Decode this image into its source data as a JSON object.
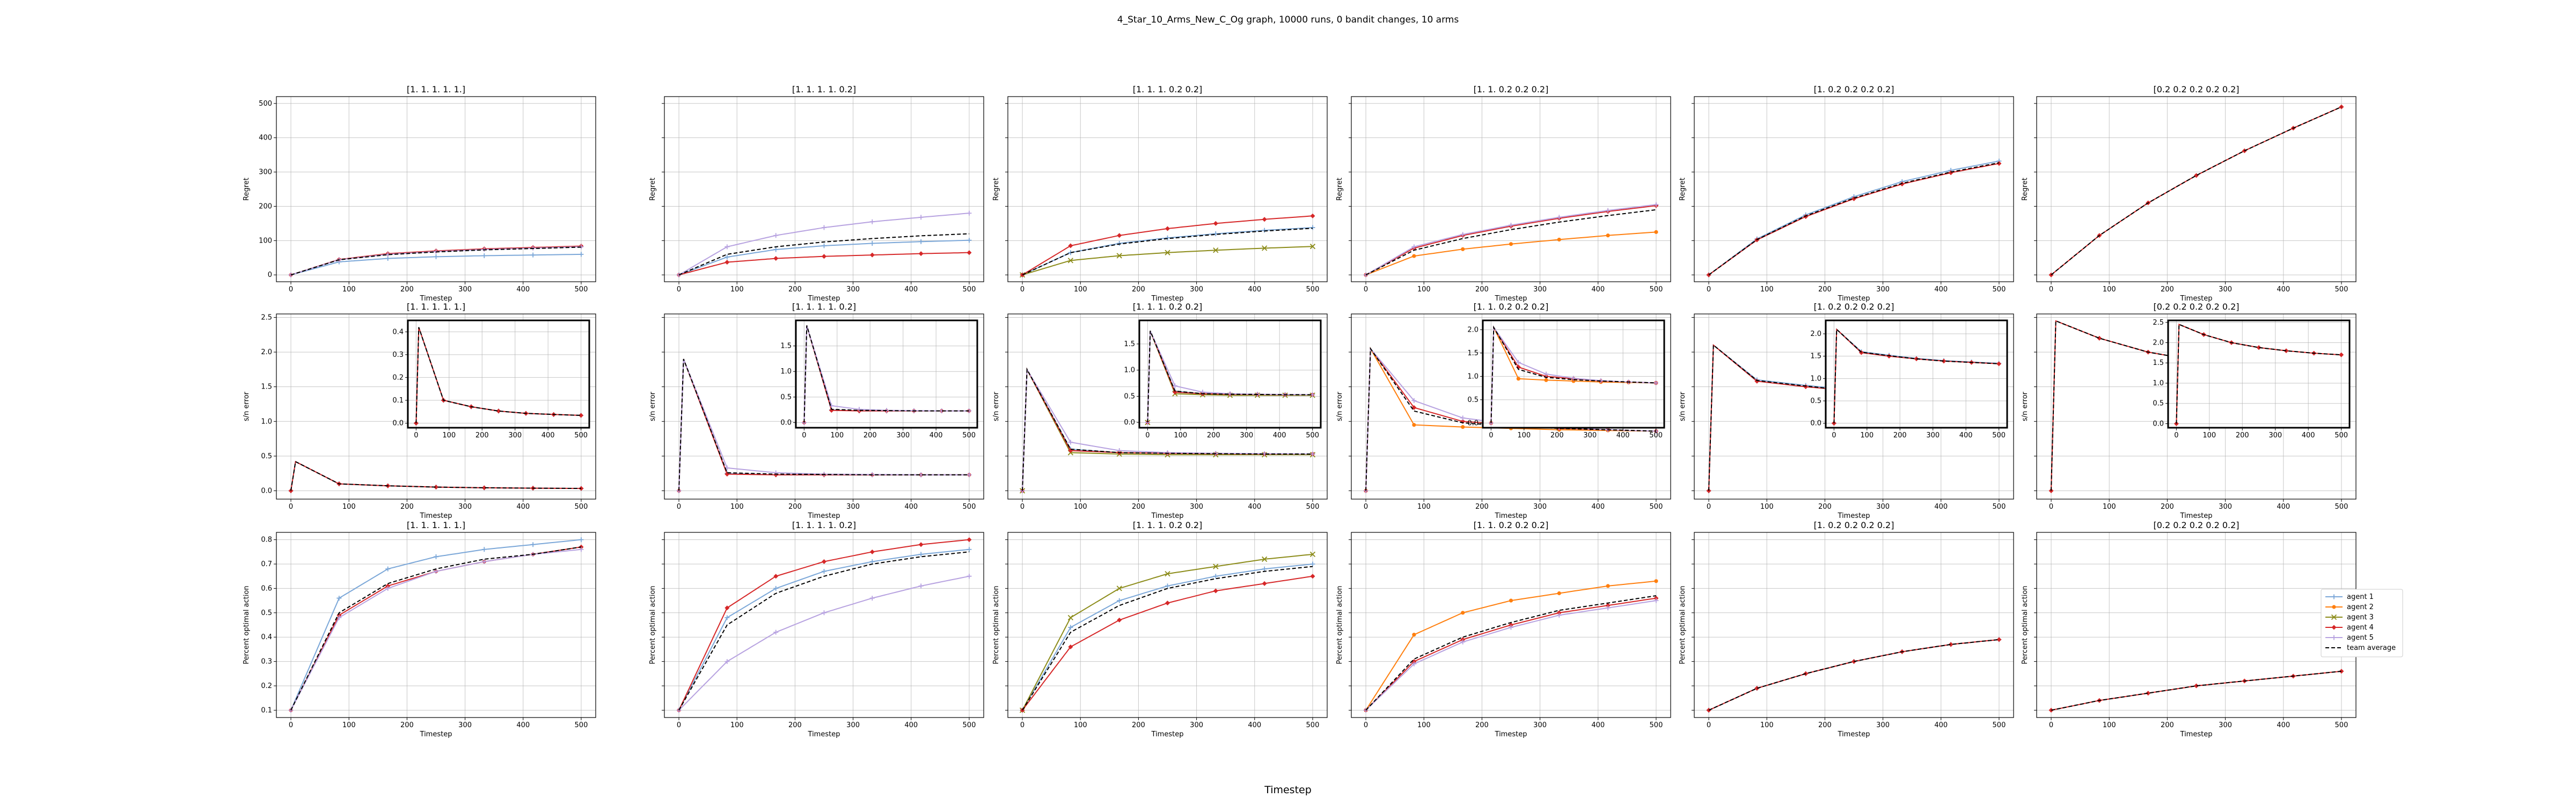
{
  "figure": {
    "title": "4_Star_10_Arms_New_C_Og graph, 10000 runs, 0 bandit changes, 10 arms",
    "xlabel": "Timestep"
  },
  "columns": [
    "[1. 1. 1. 1. 1.]",
    "[1.  1.  1.  1.  0.2]",
    "[1.  1.  1.  0.2 0.2]",
    "[1.  1.  0.2 0.2 0.2]",
    "[1.  0.2 0.2 0.2 0.2]",
    "[0.2 0.2 0.2 0.2 0.2]"
  ],
  "rows": [
    {
      "ylabel": "Regret",
      "xlabel": "Timestep",
      "ylim": [
        -20,
        520
      ],
      "yticks": [
        0,
        100,
        200,
        300,
        400,
        500
      ]
    },
    {
      "ylabel": "s/n error",
      "xlabel": "Timestep",
      "ylim": [
        -0.12,
        2.55
      ],
      "yticks": [
        0.0,
        0.5,
        1.0,
        1.5,
        2.0,
        2.5
      ]
    },
    {
      "ylabel": "Percent optimal action",
      "xlabel": "Timestep",
      "ylim": [
        0.07,
        0.83
      ],
      "yticks": [
        0.1,
        0.2,
        0.3,
        0.4,
        0.5,
        0.6,
        0.7,
        0.8
      ]
    }
  ],
  "xticks": [
    0,
    100,
    200,
    300,
    400,
    500
  ],
  "inset_xticks": [
    0,
    100,
    200,
    300,
    400,
    500
  ],
  "inset_ylims": [
    [
      -0.02,
      0.45
    ],
    [
      -0.1,
      2.0
    ],
    [
      -0.1,
      1.95
    ],
    [
      -0.1,
      2.2
    ],
    [
      -0.1,
      2.3
    ],
    [
      -0.1,
      2.55
    ]
  ],
  "inset_yticks": [
    [
      0.0,
      0.1,
      0.2,
      0.3,
      0.4
    ],
    [
      0.0,
      0.5,
      1.0,
      1.5
    ],
    [
      0.0,
      0.5,
      1.0,
      1.5
    ],
    [
      0.0,
      0.5,
      1.0,
      1.5,
      2.0
    ],
    [
      0.0,
      0.5,
      1.0,
      1.5,
      2.0
    ],
    [
      0.0,
      0.5,
      1.0,
      1.5,
      2.0,
      2.5
    ]
  ],
  "legend": [
    {
      "label": "agent 1",
      "color": "#7ba7d8",
      "marker": "plus",
      "dash": false
    },
    {
      "label": "agent 2",
      "color": "#ff7f0e",
      "marker": "circle",
      "dash": false
    },
    {
      "label": "agent 3",
      "color": "#8c8c1a",
      "marker": "x",
      "dash": false
    },
    {
      "label": "agent 4",
      "color": "#d62728",
      "marker": "diamond",
      "dash": false
    },
    {
      "label": "agent 5",
      "color": "#b7a2e0",
      "marker": "plus",
      "dash": false
    },
    {
      "label": "team average",
      "color": "#000000",
      "marker": "none",
      "dash": true
    }
  ],
  "chart_data": {
    "type": "line",
    "x_range": [
      0,
      500
    ],
    "marker_x": [
      0,
      83,
      167,
      250,
      333,
      417,
      500
    ],
    "grid": true,
    "legend_placement": "right",
    "panels": [
      [
        {
          "series": [
            {
              "agent": 0,
              "values": [
                0,
                38,
                48,
                53,
                56,
                58,
                60
              ]
            },
            {
              "agent": 3,
              "values": [
                0,
                45,
                62,
                70,
                76,
                80,
                84
              ]
            },
            {
              "agent": 4,
              "values": [
                0,
                44,
                60,
                68,
                74,
                78,
                82
              ]
            },
            {
              "agent": 5,
              "values": [
                0,
                44,
                59,
                67,
                73,
                77,
                81
              ]
            }
          ]
        },
        {
          "series": [
            {
              "agent": 0,
              "values": [
                0,
                52,
                74,
                85,
                92,
                97,
                101
              ]
            },
            {
              "agent": 3,
              "values": [
                0,
                37,
                48,
                54,
                58,
                62,
                65
              ]
            },
            {
              "agent": 4,
              "values": [
                0,
                82,
                115,
                138,
                155,
                168,
                180
              ]
            },
            {
              "agent": 5,
              "values": [
                0,
                60,
                82,
                96,
                106,
                114,
                120
              ]
            }
          ]
        },
        {
          "series": [
            {
              "agent": 0,
              "values": [
                0,
                65,
                92,
                108,
                120,
                130,
                138
              ]
            },
            {
              "agent": 2,
              "values": [
                0,
                42,
                56,
                65,
                72,
                78,
                83
              ]
            },
            {
              "agent": 3,
              "values": [
                0,
                85,
                115,
                135,
                150,
                162,
                172
              ]
            },
            {
              "agent": 5,
              "values": [
                0,
                65,
                90,
                106,
                118,
                128,
                136
              ]
            }
          ]
        },
        {
          "series": [
            {
              "agent": 1,
              "values": [
                0,
                55,
                75,
                90,
                103,
                115,
                125
              ]
            },
            {
              "agent": 3,
              "values": [
                0,
                78,
                115,
                142,
                165,
                185,
                202
              ]
            },
            {
              "agent": 4,
              "values": [
                0,
                82,
                118,
                145,
                168,
                188,
                205
              ]
            },
            {
              "agent": 5,
              "values": [
                0,
                72,
                106,
                132,
                154,
                173,
                190
              ]
            }
          ]
        },
        {
          "series": [
            {
              "agent": 0,
              "values": [
                0,
                105,
                175,
                228,
                272,
                305,
                332
              ]
            },
            {
              "agent": 3,
              "values": [
                0,
                102,
                170,
                222,
                265,
                298,
                325
              ]
            },
            {
              "agent": 5,
              "values": [
                0,
                103,
                172,
                224,
                267,
                300,
                327
              ]
            }
          ]
        },
        {
          "series": [
            {
              "agent": 3,
              "values": [
                0,
                115,
                210,
                290,
                362,
                428,
                490
              ]
            },
            {
              "agent": 5,
              "values": [
                0,
                115,
                210,
                290,
                362,
                428,
                490
              ]
            }
          ]
        }
      ],
      [
        {
          "series": [
            {
              "agent": 0,
              "values": [
                0.0,
                0.1,
                0.072,
                0.053,
                0.043,
                0.038,
                0.034
              ]
            },
            {
              "agent": 3,
              "values": [
                0.0,
                0.1,
                0.072,
                0.053,
                0.043,
                0.038,
                0.034
              ]
            },
            {
              "agent": 5,
              "values": [
                0.0,
                0.1,
                0.072,
                0.053,
                0.043,
                0.038,
                0.034
              ]
            }
          ],
          "peak": 0.42,
          "peak_x": 8
        },
        {
          "series": [
            {
              "agent": 0,
              "values": [
                0.0,
                0.25,
                0.23,
                0.23,
                0.23,
                0.23,
                0.23
              ]
            },
            {
              "agent": 3,
              "values": [
                0.0,
                0.24,
                0.23,
                0.23,
                0.23,
                0.23,
                0.23
              ]
            },
            {
              "agent": 4,
              "values": [
                0.0,
                0.33,
                0.26,
                0.24,
                0.235,
                0.23,
                0.23
              ]
            },
            {
              "agent": 5,
              "values": [
                0.0,
                0.26,
                0.24,
                0.235,
                0.23,
                0.23,
                0.23
              ]
            }
          ],
          "peak": 1.9,
          "peak_x": 8
        },
        {
          "series": [
            {
              "agent": 0,
              "values": [
                0.0,
                0.6,
                0.55,
                0.54,
                0.535,
                0.53,
                0.53
              ]
            },
            {
              "agent": 2,
              "values": [
                0.0,
                0.55,
                0.53,
                0.52,
                0.52,
                0.52,
                0.52
              ]
            },
            {
              "agent": 3,
              "values": [
                0.0,
                0.58,
                0.55,
                0.54,
                0.535,
                0.53,
                0.53
              ]
            },
            {
              "agent": 4,
              "values": [
                0.0,
                0.7,
                0.58,
                0.55,
                0.54,
                0.535,
                0.53
              ]
            },
            {
              "agent": 5,
              "values": [
                0.0,
                0.6,
                0.55,
                0.54,
                0.535,
                0.53,
                0.53
              ]
            }
          ],
          "peak": 1.75,
          "peak_x": 8
        },
        {
          "series": [
            {
              "agent": 1,
              "values": [
                0.0,
                0.95,
                0.92,
                0.9,
                0.88,
                0.87,
                0.86
              ]
            },
            {
              "agent": 3,
              "values": [
                0.0,
                1.2,
                1.0,
                0.95,
                0.9,
                0.88,
                0.86
              ]
            },
            {
              "agent": 4,
              "values": [
                0.0,
                1.3,
                1.05,
                0.96,
                0.91,
                0.88,
                0.86
              ]
            },
            {
              "agent": 5,
              "values": [
                0.0,
                1.15,
                0.98,
                0.93,
                0.9,
                0.88,
                0.86
              ]
            }
          ],
          "peak": 2.05,
          "peak_x": 8
        },
        {
          "series": [
            {
              "agent": 0,
              "values": [
                0.0,
                1.6,
                1.52,
                1.45,
                1.4,
                1.37,
                1.34
              ]
            },
            {
              "agent": 3,
              "values": [
                0.0,
                1.58,
                1.5,
                1.44,
                1.39,
                1.36,
                1.33
              ]
            },
            {
              "agent": 5,
              "values": [
                0.0,
                1.59,
                1.51,
                1.44,
                1.39,
                1.36,
                1.33
              ]
            }
          ],
          "peak": 2.1,
          "peak_x": 8
        },
        {
          "series": [
            {
              "agent": 3,
              "values": [
                0.0,
                2.2,
                2.0,
                1.88,
                1.8,
                1.74,
                1.7
              ]
            },
            {
              "agent": 5,
              "values": [
                0.0,
                2.2,
                2.0,
                1.88,
                1.8,
                1.74,
                1.7
              ]
            }
          ],
          "peak": 2.45,
          "peak_x": 8
        }
      ],
      [
        {
          "series": [
            {
              "agent": 0,
              "values": [
                0.1,
                0.56,
                0.68,
                0.73,
                0.76,
                0.78,
                0.8
              ]
            },
            {
              "agent": 3,
              "values": [
                0.1,
                0.49,
                0.61,
                0.67,
                0.71,
                0.74,
                0.77
              ]
            },
            {
              "agent": 4,
              "values": [
                0.1,
                0.48,
                0.6,
                0.67,
                0.71,
                0.74,
                0.76
              ]
            },
            {
              "agent": 5,
              "values": [
                0.1,
                0.5,
                0.62,
                0.68,
                0.72,
                0.74,
                0.77
              ]
            }
          ]
        },
        {
          "series": [
            {
              "agent": 0,
              "values": [
                0.1,
                0.48,
                0.6,
                0.67,
                0.71,
                0.74,
                0.76
              ]
            },
            {
              "agent": 3,
              "values": [
                0.1,
                0.52,
                0.65,
                0.71,
                0.75,
                0.78,
                0.8
              ]
            },
            {
              "agent": 4,
              "values": [
                0.1,
                0.3,
                0.42,
                0.5,
                0.56,
                0.61,
                0.65
              ]
            },
            {
              "agent": 5,
              "values": [
                0.1,
                0.45,
                0.58,
                0.65,
                0.7,
                0.73,
                0.75
              ]
            }
          ]
        },
        {
          "series": [
            {
              "agent": 0,
              "values": [
                0.1,
                0.44,
                0.55,
                0.61,
                0.65,
                0.68,
                0.7
              ]
            },
            {
              "agent": 2,
              "values": [
                0.1,
                0.48,
                0.6,
                0.66,
                0.69,
                0.72,
                0.74
              ]
            },
            {
              "agent": 3,
              "values": [
                0.1,
                0.36,
                0.47,
                0.54,
                0.59,
                0.62,
                0.65
              ]
            },
            {
              "agent": 5,
              "values": [
                0.1,
                0.42,
                0.53,
                0.6,
                0.64,
                0.67,
                0.69
              ]
            }
          ]
        },
        {
          "series": [
            {
              "agent": 1,
              "values": [
                0.1,
                0.41,
                0.5,
                0.55,
                0.58,
                0.61,
                0.63
              ]
            },
            {
              "agent": 3,
              "values": [
                0.1,
                0.3,
                0.39,
                0.45,
                0.5,
                0.53,
                0.56
              ]
            },
            {
              "agent": 4,
              "values": [
                0.1,
                0.29,
                0.38,
                0.44,
                0.49,
                0.52,
                0.55
              ]
            },
            {
              "agent": 5,
              "values": [
                0.1,
                0.31,
                0.4,
                0.46,
                0.51,
                0.54,
                0.57
              ]
            }
          ]
        },
        {
          "series": [
            {
              "agent": 0,
              "values": [
                0.1,
                0.19,
                0.25,
                0.3,
                0.34,
                0.37,
                0.39
              ]
            },
            {
              "agent": 3,
              "values": [
                0.1,
                0.19,
                0.25,
                0.3,
                0.34,
                0.37,
                0.39
              ]
            },
            {
              "agent": 5,
              "values": [
                0.1,
                0.19,
                0.25,
                0.3,
                0.34,
                0.37,
                0.39
              ]
            }
          ]
        },
        {
          "series": [
            {
              "agent": 3,
              "values": [
                0.1,
                0.14,
                0.17,
                0.2,
                0.22,
                0.24,
                0.26
              ]
            },
            {
              "agent": 5,
              "values": [
                0.1,
                0.14,
                0.17,
                0.2,
                0.22,
                0.24,
                0.26
              ]
            }
          ]
        }
      ]
    ]
  }
}
